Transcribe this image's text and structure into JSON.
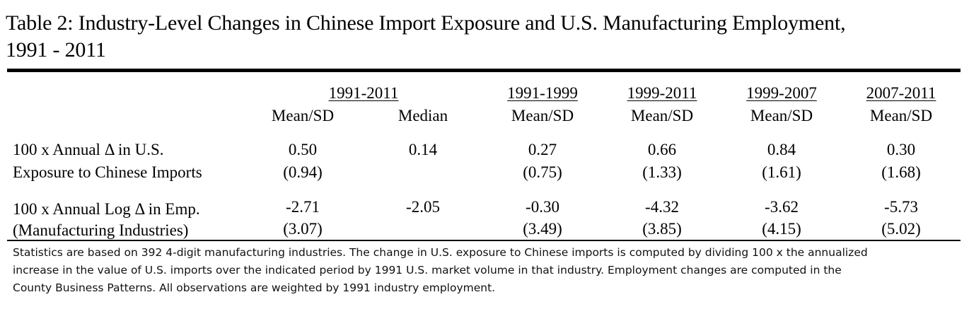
{
  "title_line1": "Table 2:  Industry-Level Changes in Chinese Import Exposure and U.S. Manufacturing Employment,",
  "title_line2": "1991 - 2011",
  "headers": {
    "period_1991_2011": "1991-2011",
    "period_1991_1999": "1991-1999",
    "period_1999_2011": "1999-2011",
    "period_1999_2007": "1999-2007",
    "period_2007_2011": "2007-2011",
    "mean_sd": "Mean/SD",
    "median": "Median"
  },
  "rows": [
    {
      "label_line1": "100 x Annual Δ in U.S.",
      "label_line2": "Exposure to Chinese Imports",
      "mean_1991_2011": "0.50",
      "sd_1991_2011": "(0.94)",
      "median_1991_2011": "0.14",
      "mean_1991_1999": "0.27",
      "sd_1991_1999": "(0.75)",
      "mean_1999_2011": "0.66",
      "sd_1999_2011": "(1.33)",
      "mean_1999_2007": "0.84",
      "sd_1999_2007": "(1.61)",
      "mean_2007_2011": "0.30",
      "sd_2007_2011": "(1.68)"
    },
    {
      "label_line1": "100 x Annual Log Δ in Emp.",
      "label_line2": "(Manufacturing Industries)",
      "mean_1991_2011": "-2.71",
      "sd_1991_2011": "(3.07)",
      "median_1991_2011": "-2.05",
      "mean_1991_1999": "-0.30",
      "sd_1991_1999": "(3.49)",
      "mean_1999_2011": "-4.32",
      "sd_1999_2011": "(3.85)",
      "mean_1999_2007": "-3.62",
      "sd_1999_2007": "(4.15)",
      "mean_2007_2011": "-5.73",
      "sd_2007_2011": "(5.02)"
    }
  ],
  "note": {
    "line1": "Statistics are based on 392 4-digit manufacturing industries. The change in U.S. exposure to Chinese imports is computed by dividing 100 x the annualized",
    "line2": "increase in the value of U.S. imports over the indicated period by 1991 U.S. market volume in that industry. Employment changes are computed in the",
    "line3": "County Business Patterns. All observations are weighted by 1991 industry employment."
  }
}
